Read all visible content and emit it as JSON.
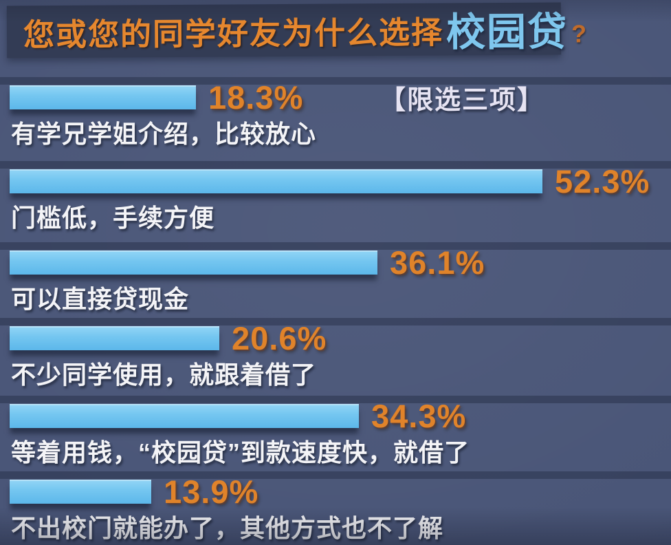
{
  "title": {
    "prefix": "您或您的同学好友为什么选择",
    "highlight": "校园贷",
    "question_mark": "?"
  },
  "note": "【限选三项】",
  "chart_data": {
    "type": "bar",
    "orientation": "horizontal",
    "title": "您或您的同学好友为什么选择校园贷?",
    "note": "【限选三项】",
    "unit": "%",
    "categories": [
      "有学兄学姐介绍，比较放心",
      "门槛低，手续方便",
      "可以直接贷现金",
      "不少同学使用，就跟着借了",
      "等着用钱，“校园贷”到款速度快，就借了",
      "不出校门就能办了，其他方式也不了解"
    ],
    "values": [
      18.3,
      52.3,
      36.1,
      20.6,
      34.3,
      13.9
    ],
    "value_labels": [
      "18.3%",
      "52.3%",
      "36.1%",
      "20.6%",
      "34.3%",
      "13.9%"
    ],
    "xlim": [
      0,
      60
    ],
    "grid": false,
    "legend": false,
    "colors": {
      "background": "#4a5678",
      "banner": "#333c55",
      "bar": "#74c6f0",
      "percent_text": "#e0832a",
      "category_text": "#f4f4f7",
      "title_text": "#e6872e",
      "title_highlight": "#7fc7ee",
      "note_text": "#e6e3f2",
      "question_mark": "#bf6b2b"
    }
  }
}
